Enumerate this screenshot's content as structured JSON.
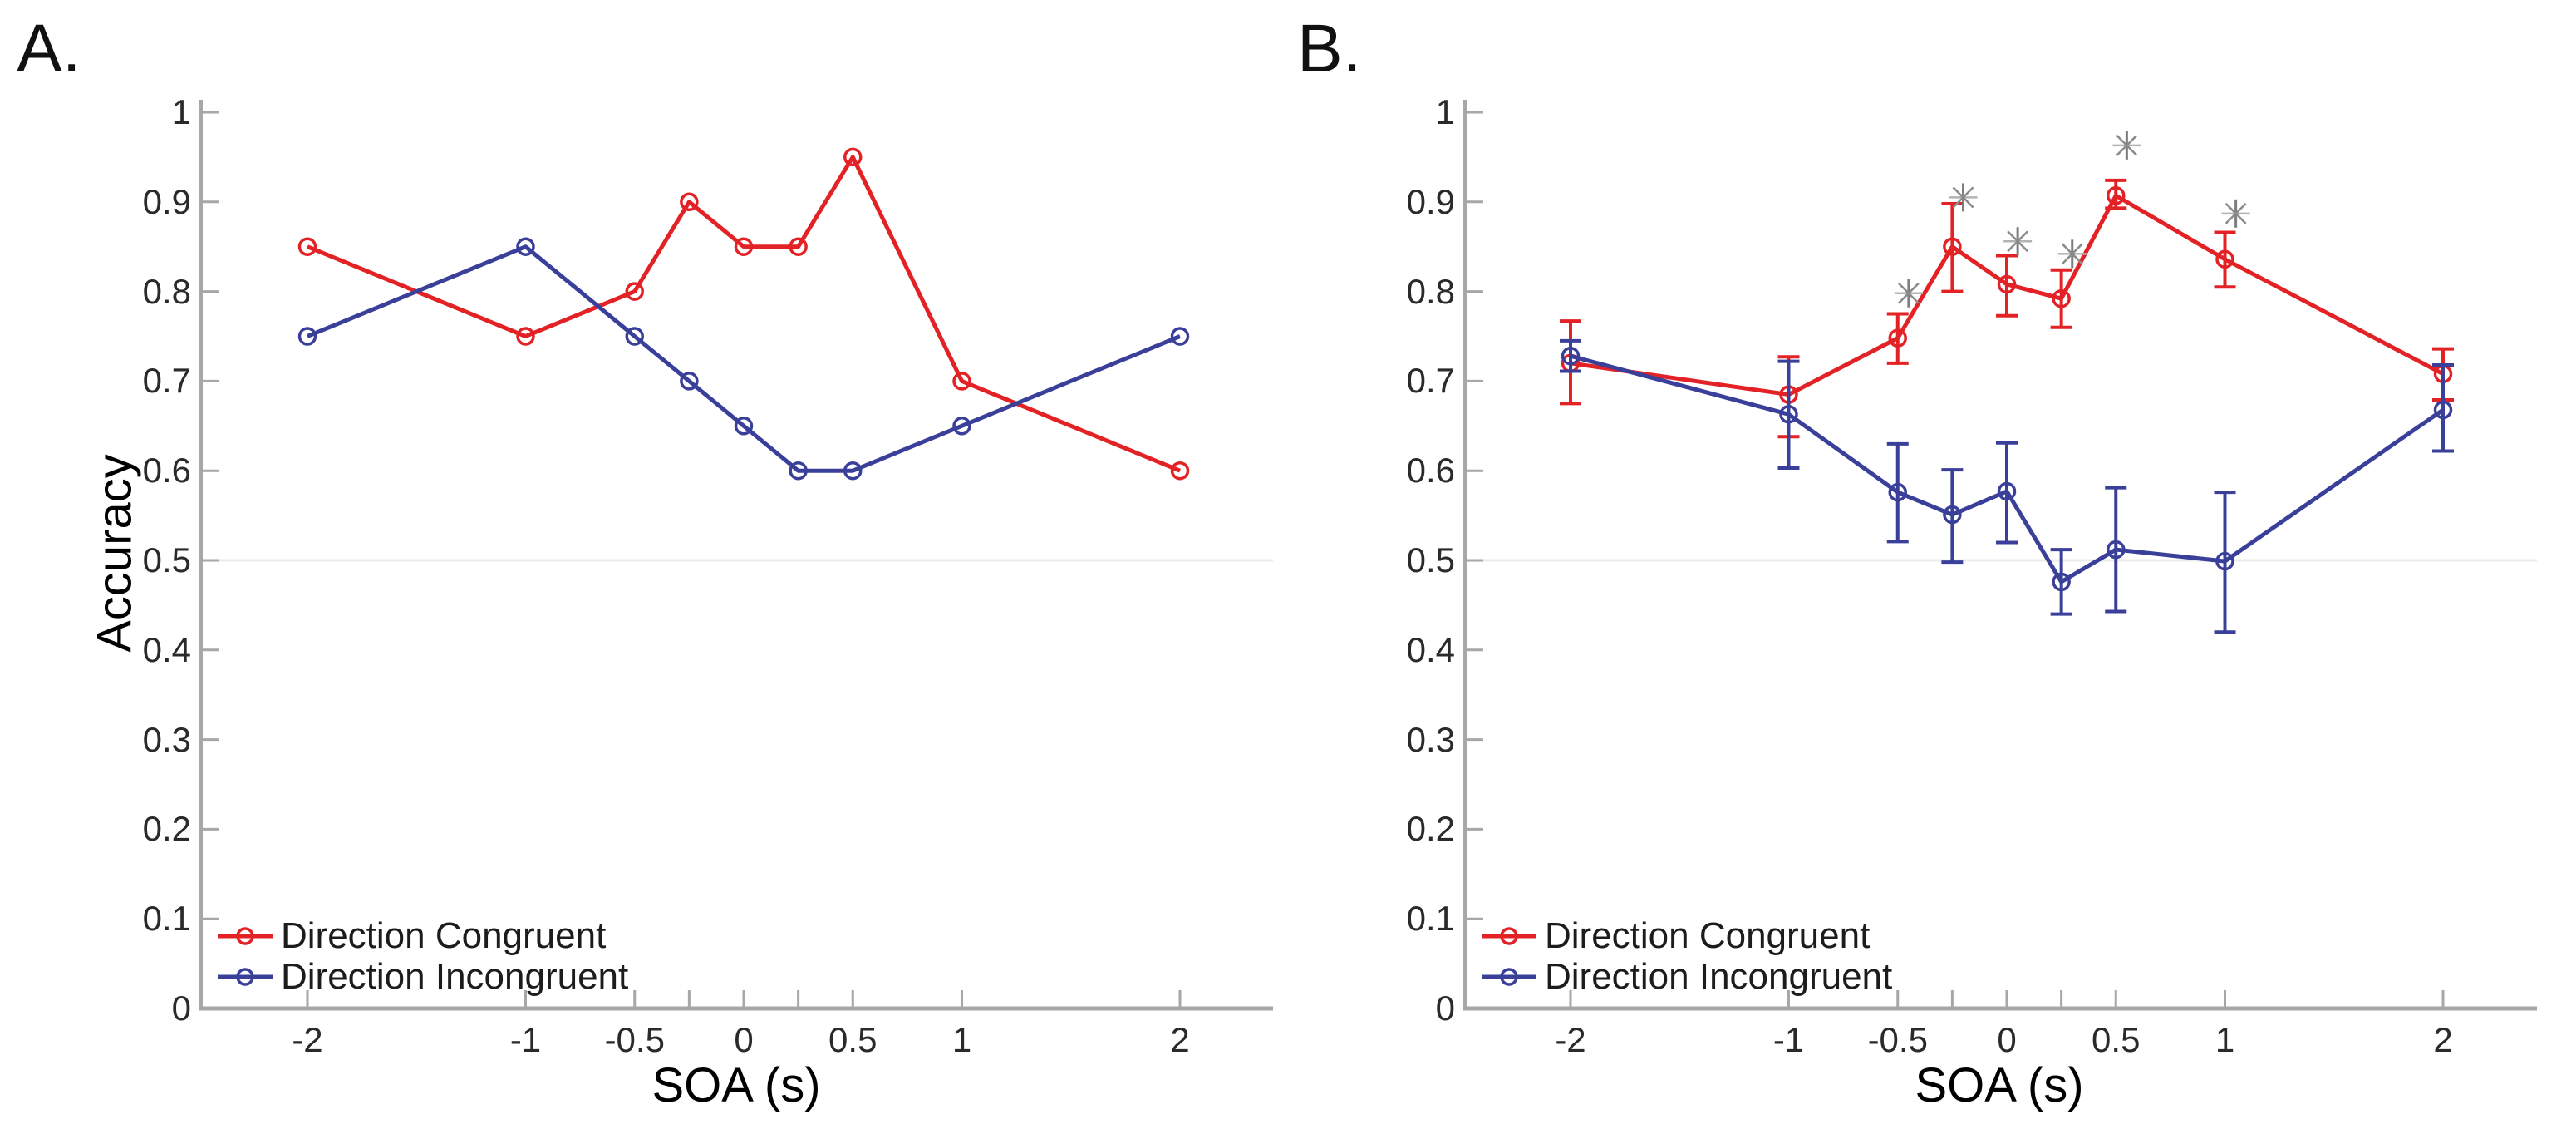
{
  "colors": {
    "congruent": "#e32226",
    "incongruent": "#3a4099",
    "axis": "#a7a7a7",
    "tick_label": "#2a2a2a",
    "chance_line": "#ececec",
    "asterisk": "#8a8a8a"
  },
  "chart_data": [
    {
      "id": "A",
      "type": "line",
      "panel_label": "A.",
      "xlabel": "SOA (s)",
      "ylabel": "Accuracy",
      "xlim": [
        -2.5,
        2.45
      ],
      "ylim": [
        0,
        1.01
      ],
      "grid": false,
      "chance_line": 0.5,
      "legend_position": "lower-left",
      "x": [
        -2,
        -1,
        -0.5,
        -0.25,
        0,
        0.25,
        0.5,
        1,
        2
      ],
      "x_ticks": [
        {
          "v": -2,
          "label": "-2"
        },
        {
          "v": -1,
          "label": "-1"
        },
        {
          "v": -0.5,
          "label": "-0.5"
        },
        {
          "v": 0,
          "label": "0"
        },
        {
          "v": 0.5,
          "label": "0.5"
        },
        {
          "v": 1,
          "label": "1"
        },
        {
          "v": 2,
          "label": "2"
        }
      ],
      "y_ticks": [
        {
          "v": 0,
          "label": "0"
        },
        {
          "v": 0.1,
          "label": "0.1"
        },
        {
          "v": 0.2,
          "label": "0.2"
        },
        {
          "v": 0.3,
          "label": "0.3"
        },
        {
          "v": 0.4,
          "label": "0.4"
        },
        {
          "v": 0.5,
          "label": "0.5"
        },
        {
          "v": 0.6,
          "label": "0.6"
        },
        {
          "v": 0.7,
          "label": "0.7"
        },
        {
          "v": 0.8,
          "label": "0.8"
        },
        {
          "v": 0.9,
          "label": "0.9"
        },
        {
          "v": 1,
          "label": "1"
        }
      ],
      "series": [
        {
          "name": "Direction Congruent",
          "color": "congruent",
          "values": [
            0.85,
            0.75,
            0.8,
            0.9,
            0.85,
            0.85,
            0.95,
            0.7,
            0.6
          ]
        },
        {
          "name": "Direction Incongruent",
          "color": "incongruent",
          "values": [
            0.75,
            0.85,
            0.75,
            0.7,
            0.65,
            0.6,
            0.6,
            0.65,
            0.75
          ]
        }
      ],
      "significance_markers": []
    },
    {
      "id": "B",
      "type": "line",
      "panel_label": "B.",
      "xlabel": "SOA (s)",
      "ylabel": "",
      "xlim": [
        -2.5,
        2.45
      ],
      "ylim": [
        0,
        1.01
      ],
      "grid": false,
      "chance_line": 0.5,
      "legend_position": "lower-left",
      "x": [
        -2,
        -1,
        -0.5,
        -0.25,
        0,
        0.25,
        0.5,
        1,
        2
      ],
      "x_ticks": [
        {
          "v": -2,
          "label": "-2"
        },
        {
          "v": -1,
          "label": "-1"
        },
        {
          "v": -0.5,
          "label": "-0.5"
        },
        {
          "v": 0,
          "label": "0"
        },
        {
          "v": 0.5,
          "label": "0.5"
        },
        {
          "v": 1,
          "label": "1"
        },
        {
          "v": 2,
          "label": "2"
        }
      ],
      "y_ticks": [
        {
          "v": 0,
          "label": "0"
        },
        {
          "v": 0.1,
          "label": "0.1"
        },
        {
          "v": 0.2,
          "label": "0.2"
        },
        {
          "v": 0.3,
          "label": "0.3"
        },
        {
          "v": 0.4,
          "label": "0.4"
        },
        {
          "v": 0.5,
          "label": "0.5"
        },
        {
          "v": 0.6,
          "label": "0.6"
        },
        {
          "v": 0.7,
          "label": "0.7"
        },
        {
          "v": 0.8,
          "label": "0.8"
        },
        {
          "v": 0.9,
          "label": "0.9"
        },
        {
          "v": 1,
          "label": "1"
        }
      ],
      "series": [
        {
          "name": "Direction Congruent",
          "color": "congruent",
          "values": [
            0.72,
            0.685,
            0.748,
            0.85,
            0.808,
            0.792,
            0.907,
            0.836,
            0.708
          ],
          "err_lo": [
            0.045,
            0.047,
            0.028,
            0.05,
            0.035,
            0.032,
            0.014,
            0.031,
            0.029
          ],
          "err_hi": [
            0.047,
            0.042,
            0.027,
            0.048,
            0.032,
            0.032,
            0.017,
            0.03,
            0.028
          ]
        },
        {
          "name": "Direction Incongruent",
          "color": "incongruent",
          "values": [
            0.728,
            0.663,
            0.576,
            0.551,
            0.577,
            0.476,
            0.512,
            0.499,
            0.668
          ],
          "err_lo": [
            0.017,
            0.06,
            0.055,
            0.053,
            0.057,
            0.036,
            0.069,
            0.079,
            0.046
          ],
          "err_hi": [
            0.017,
            0.059,
            0.054,
            0.05,
            0.054,
            0.036,
            0.069,
            0.077,
            0.05
          ]
        }
      ],
      "significance_markers": [
        {
          "x": -0.45,
          "y": 0.798
        },
        {
          "x": -0.2,
          "y": 0.905
        },
        {
          "x": 0.05,
          "y": 0.856
        },
        {
          "x": 0.3,
          "y": 0.842
        },
        {
          "x": 0.55,
          "y": 0.963
        },
        {
          "x": 1.05,
          "y": 0.887
        }
      ]
    }
  ]
}
